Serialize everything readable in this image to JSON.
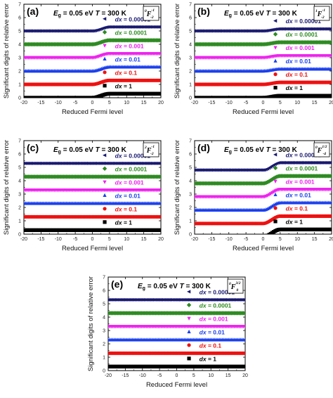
{
  "figure": {
    "ylabel": "Significant digits of relative error",
    "xlabel": "Reduced Fermi level"
  },
  "colors": {
    "dx = 0.00001": "#191970",
    "dx = 0.0001": "#2E8B22",
    "dx = 0.001": "#EE22EE",
    "dx = 0.01": "#1A3FEE",
    "dx = 0.1": "#EE1111",
    "dx = 1": "#000000"
  },
  "markers": {
    "dx = 0.00001": "triangle-left",
    "dx = 0.0001": "diamond",
    "dx = 0.001": "triangle-down",
    "dx = 0.01": "triangle-up",
    "dx = 0.1": "circle",
    "dx = 1": "square"
  },
  "chart_data": [
    {
      "type": "scatter",
      "panel_label": "(a)",
      "params": {
        "Eg_label": "E",
        "Eg_sub": "g",
        "Eg_value": " = 0.05 eV",
        "T_label": "T",
        "T_value": " = 300 K"
      },
      "function_label": {
        "sup_left": "0",
        "main": "F",
        "sup": "-1",
        "sub": "-2"
      },
      "xlim": [
        -20,
        20
      ],
      "ylim": [
        0,
        7
      ],
      "xticks": [
        "-20",
        "-15",
        "-10",
        "-5",
        "0",
        "5",
        "10",
        "15",
        "20"
      ],
      "yticks": [
        "0",
        "1",
        "2",
        "3",
        "4",
        "5",
        "6",
        "7"
      ],
      "x": [
        -20,
        0,
        5,
        20
      ],
      "series": [
        {
          "name": "dx = 0.00001",
          "label_prefix": "dx",
          "label_value": " = 0.00001",
          "values": [
            5.0,
            5.0,
            5.3,
            5.3
          ]
        },
        {
          "name": "dx = 0.0001",
          "label_prefix": "dx",
          "label_value": " = 0.0001",
          "values": [
            4.0,
            4.0,
            4.3,
            4.3
          ]
        },
        {
          "name": "dx = 0.001",
          "label_prefix": "dx",
          "label_value": " = 0.001",
          "values": [
            3.0,
            3.0,
            3.3,
            3.3
          ]
        },
        {
          "name": "dx = 0.01",
          "label_prefix": "dx",
          "label_value": " = 0.01",
          "values": [
            2.0,
            2.0,
            2.3,
            2.3
          ]
        },
        {
          "name": "dx = 0.1",
          "label_prefix": "dx",
          "label_value": " = 0.1",
          "values": [
            1.0,
            1.0,
            1.3,
            1.3
          ]
        },
        {
          "name": "dx = 1",
          "label_prefix": "dx",
          "label_value": " = 1",
          "values": [
            0.0,
            0.0,
            0.3,
            0.3
          ]
        }
      ]
    },
    {
      "type": "scatter",
      "panel_label": "(b)",
      "params": {
        "Eg_label": "E",
        "Eg_sub": "g",
        "Eg_value": " = 0.05 eV",
        "T_label": "T",
        "T_value": " = 300 K"
      },
      "function_label": {
        "sup_left": "1",
        "main": "F",
        "sup": "-1",
        "sub": "-2"
      },
      "xlim": [
        -20,
        20
      ],
      "ylim": [
        0,
        7
      ],
      "xticks": [
        "-20",
        "-15",
        "-10",
        "-5",
        "0",
        "5",
        "10",
        "15",
        "20"
      ],
      "yticks": [
        "0",
        "1",
        "2",
        "3",
        "4",
        "5",
        "6",
        "7"
      ],
      "x": [
        -20,
        0,
        5,
        20
      ],
      "series": [
        {
          "name": "dx = 0.00001",
          "label_prefix": "dx",
          "label_value": " = 0.00001",
          "values": [
            5.0,
            5.0,
            5.15,
            5.15
          ]
        },
        {
          "name": "dx = 0.0001",
          "label_prefix": "dx",
          "label_value": " = 0.0001",
          "values": [
            4.0,
            4.0,
            4.15,
            4.15
          ]
        },
        {
          "name": "dx = 0.001",
          "label_prefix": "dx",
          "label_value": " = 0.001",
          "values": [
            3.0,
            3.0,
            3.15,
            3.15
          ]
        },
        {
          "name": "dx = 0.01",
          "label_prefix": "dx",
          "label_value": " = 0.01",
          "values": [
            2.0,
            2.0,
            2.15,
            2.15
          ]
        },
        {
          "name": "dx = 0.1",
          "label_prefix": "dx",
          "label_value": " = 0.1",
          "values": [
            1.0,
            1.0,
            1.15,
            1.15
          ]
        },
        {
          "name": "dx = 1",
          "label_prefix": "dx",
          "label_value": " = 1",
          "values": [
            0.0,
            0.0,
            0.15,
            0.15
          ]
        }
      ]
    },
    {
      "type": "scatter",
      "panel_label": "(c)",
      "params": {
        "Eg_label": "E",
        "Eg_sub": "g",
        "Eg_value": " = 0.05 eV",
        "T_label": "T",
        "T_value": " = 300 K"
      },
      "function_label": {
        "sup_left": "2",
        "main": "F",
        "sup": "-1",
        "sub": "-2"
      },
      "xlim": [
        -20,
        20
      ],
      "ylim": [
        0,
        7
      ],
      "xticks": [
        "-20",
        "-15",
        "-10",
        "-5",
        "0",
        "5",
        "10",
        "15",
        "20"
      ],
      "yticks": [
        "0",
        "1",
        "2",
        "3",
        "4",
        "5",
        "6",
        "7"
      ],
      "x": [
        -20,
        0,
        5,
        20
      ],
      "series": [
        {
          "name": "dx = 0.00001",
          "label_prefix": "dx",
          "label_value": " = 0.00001",
          "values": [
            5.3,
            5.3,
            5.3,
            5.3
          ]
        },
        {
          "name": "dx = 0.0001",
          "label_prefix": "dx",
          "label_value": " = 0.0001",
          "values": [
            4.3,
            4.3,
            4.3,
            4.3
          ]
        },
        {
          "name": "dx = 0.001",
          "label_prefix": "dx",
          "label_value": " = 0.001",
          "values": [
            3.3,
            3.3,
            3.3,
            3.3
          ]
        },
        {
          "name": "dx = 0.01",
          "label_prefix": "dx",
          "label_value": " = 0.01",
          "values": [
            2.3,
            2.3,
            2.3,
            2.3
          ]
        },
        {
          "name": "dx = 0.1",
          "label_prefix": "dx",
          "label_value": " = 0.1",
          "values": [
            1.3,
            1.3,
            1.3,
            1.3
          ]
        },
        {
          "name": "dx = 1",
          "label_prefix": "dx",
          "label_value": " = 1",
          "values": [
            0.3,
            0.3,
            0.3,
            0.3
          ]
        }
      ]
    },
    {
      "type": "scatter",
      "panel_label": "(d)",
      "params": {
        "Eg_label": "E",
        "Eg_sub": "g",
        "Eg_value": " = 0.05 eV",
        "T_label": "T",
        "T_value": " = 300 K"
      },
      "function_label": {
        "sup_left": "0",
        "main": "F",
        "sup": "1/2",
        "sub": "-4"
      },
      "xlim": [
        -20,
        20
      ],
      "ylim": [
        0,
        7
      ],
      "xticks": [
        "-20",
        "-15",
        "-10",
        "-5",
        "0",
        "5",
        "10",
        "15",
        "20"
      ],
      "yticks": [
        "0",
        "1",
        "2",
        "3",
        "4",
        "5",
        "6",
        "7"
      ],
      "x": [
        -20,
        0,
        5,
        20
      ],
      "series": [
        {
          "name": "dx = 0.00001",
          "label_prefix": "dx",
          "label_value": " = 0.00001",
          "values": [
            4.8,
            4.8,
            5.35,
            5.35
          ]
        },
        {
          "name": "dx = 0.0001",
          "label_prefix": "dx",
          "label_value": " = 0.0001",
          "values": [
            3.8,
            3.8,
            4.35,
            4.35
          ]
        },
        {
          "name": "dx = 0.001",
          "label_prefix": "dx",
          "label_value": " = 0.001",
          "values": [
            2.8,
            2.8,
            3.35,
            3.35
          ]
        },
        {
          "name": "dx = 0.01",
          "label_prefix": "dx",
          "label_value": " = 0.01",
          "values": [
            1.8,
            1.8,
            2.35,
            2.35
          ]
        },
        {
          "name": "dx = 0.1",
          "label_prefix": "dx",
          "label_value": " = 0.1",
          "values": [
            0.8,
            0.8,
            1.35,
            1.35
          ]
        },
        {
          "name": "dx = 1",
          "label_prefix": "dx",
          "label_value": " = 1",
          "values": [
            -0.2,
            -0.2,
            0.35,
            0.35
          ]
        }
      ]
    },
    {
      "type": "scatter",
      "panel_label": "(e)",
      "params": {
        "Eg_label": "E",
        "Eg_sub": "g",
        "Eg_value": " = 0.05 eV",
        "T_label": "T",
        "T_value": " = 300 K"
      },
      "function_label": {
        "sup_left": "0",
        "main": "F",
        "sup": "3/2",
        "sub": "0"
      },
      "xlim": [
        -20,
        20
      ],
      "ylim": [
        0,
        7
      ],
      "xticks": [
        "-20",
        "-15",
        "-10",
        "-5",
        "0",
        "5",
        "10",
        "15",
        "20"
      ],
      "yticks": [
        "0",
        "1",
        "2",
        "3",
        "4",
        "5",
        "6",
        "7"
      ],
      "x": [
        -20,
        0,
        5,
        20
      ],
      "series": [
        {
          "name": "dx = 0.00001",
          "label_prefix": "dx",
          "label_value": " = 0.00001",
          "values": [
            5.3,
            5.3,
            5.3,
            5.3
          ]
        },
        {
          "name": "dx = 0.0001",
          "label_prefix": "dx",
          "label_value": " = 0.0001",
          "values": [
            4.3,
            4.3,
            4.3,
            4.3
          ]
        },
        {
          "name": "dx = 0.001",
          "label_prefix": "dx",
          "label_value": " = 0.001",
          "values": [
            3.3,
            3.3,
            3.3,
            3.3
          ]
        },
        {
          "name": "dx = 0.01",
          "label_prefix": "dx",
          "label_value": " = 0.01",
          "values": [
            2.3,
            2.3,
            2.3,
            2.3
          ]
        },
        {
          "name": "dx = 0.1",
          "label_prefix": "dx",
          "label_value": " = 0.1",
          "values": [
            1.3,
            1.3,
            1.3,
            1.3
          ]
        },
        {
          "name": "dx = 1",
          "label_prefix": "dx",
          "label_value": " = 1",
          "values": [
            0.3,
            0.3,
            0.3,
            0.3
          ]
        }
      ]
    }
  ]
}
